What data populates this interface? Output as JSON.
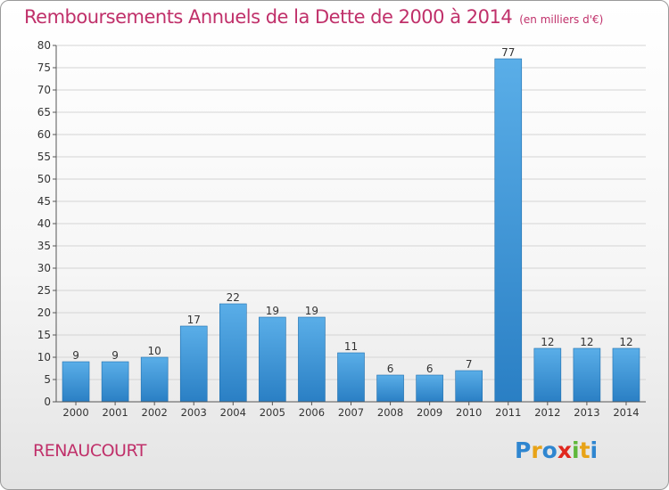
{
  "header": {
    "title": "Remboursements Annuels de la Dette de 2000 à 2014",
    "unit": "(en milliers d'€)"
  },
  "footer": {
    "place": "RENAUCOURT",
    "logo": [
      "P",
      "r",
      "o",
      "x",
      "i",
      "t",
      "i"
    ]
  },
  "chart_data": {
    "type": "bar",
    "categories": [
      "2000",
      "2001",
      "2002",
      "2003",
      "2004",
      "2005",
      "2006",
      "2007",
      "2008",
      "2009",
      "2010",
      "2011",
      "2012",
      "2013",
      "2014"
    ],
    "values": [
      9,
      9,
      10,
      17,
      22,
      19,
      19,
      11,
      6,
      6,
      7,
      77,
      12,
      12,
      12
    ],
    "ylim": [
      0,
      80
    ],
    "yticks": [
      0,
      5,
      10,
      15,
      20,
      25,
      30,
      35,
      40,
      45,
      50,
      55,
      60,
      65,
      70,
      75,
      80
    ],
    "grid": true,
    "legend": "none",
    "colors": {
      "bar_top": "#5aaee8",
      "bar_bottom": "#2a7fc4",
      "bar_edge": "#1f6fae",
      "label": "#333333",
      "title": "#c0306a"
    }
  }
}
